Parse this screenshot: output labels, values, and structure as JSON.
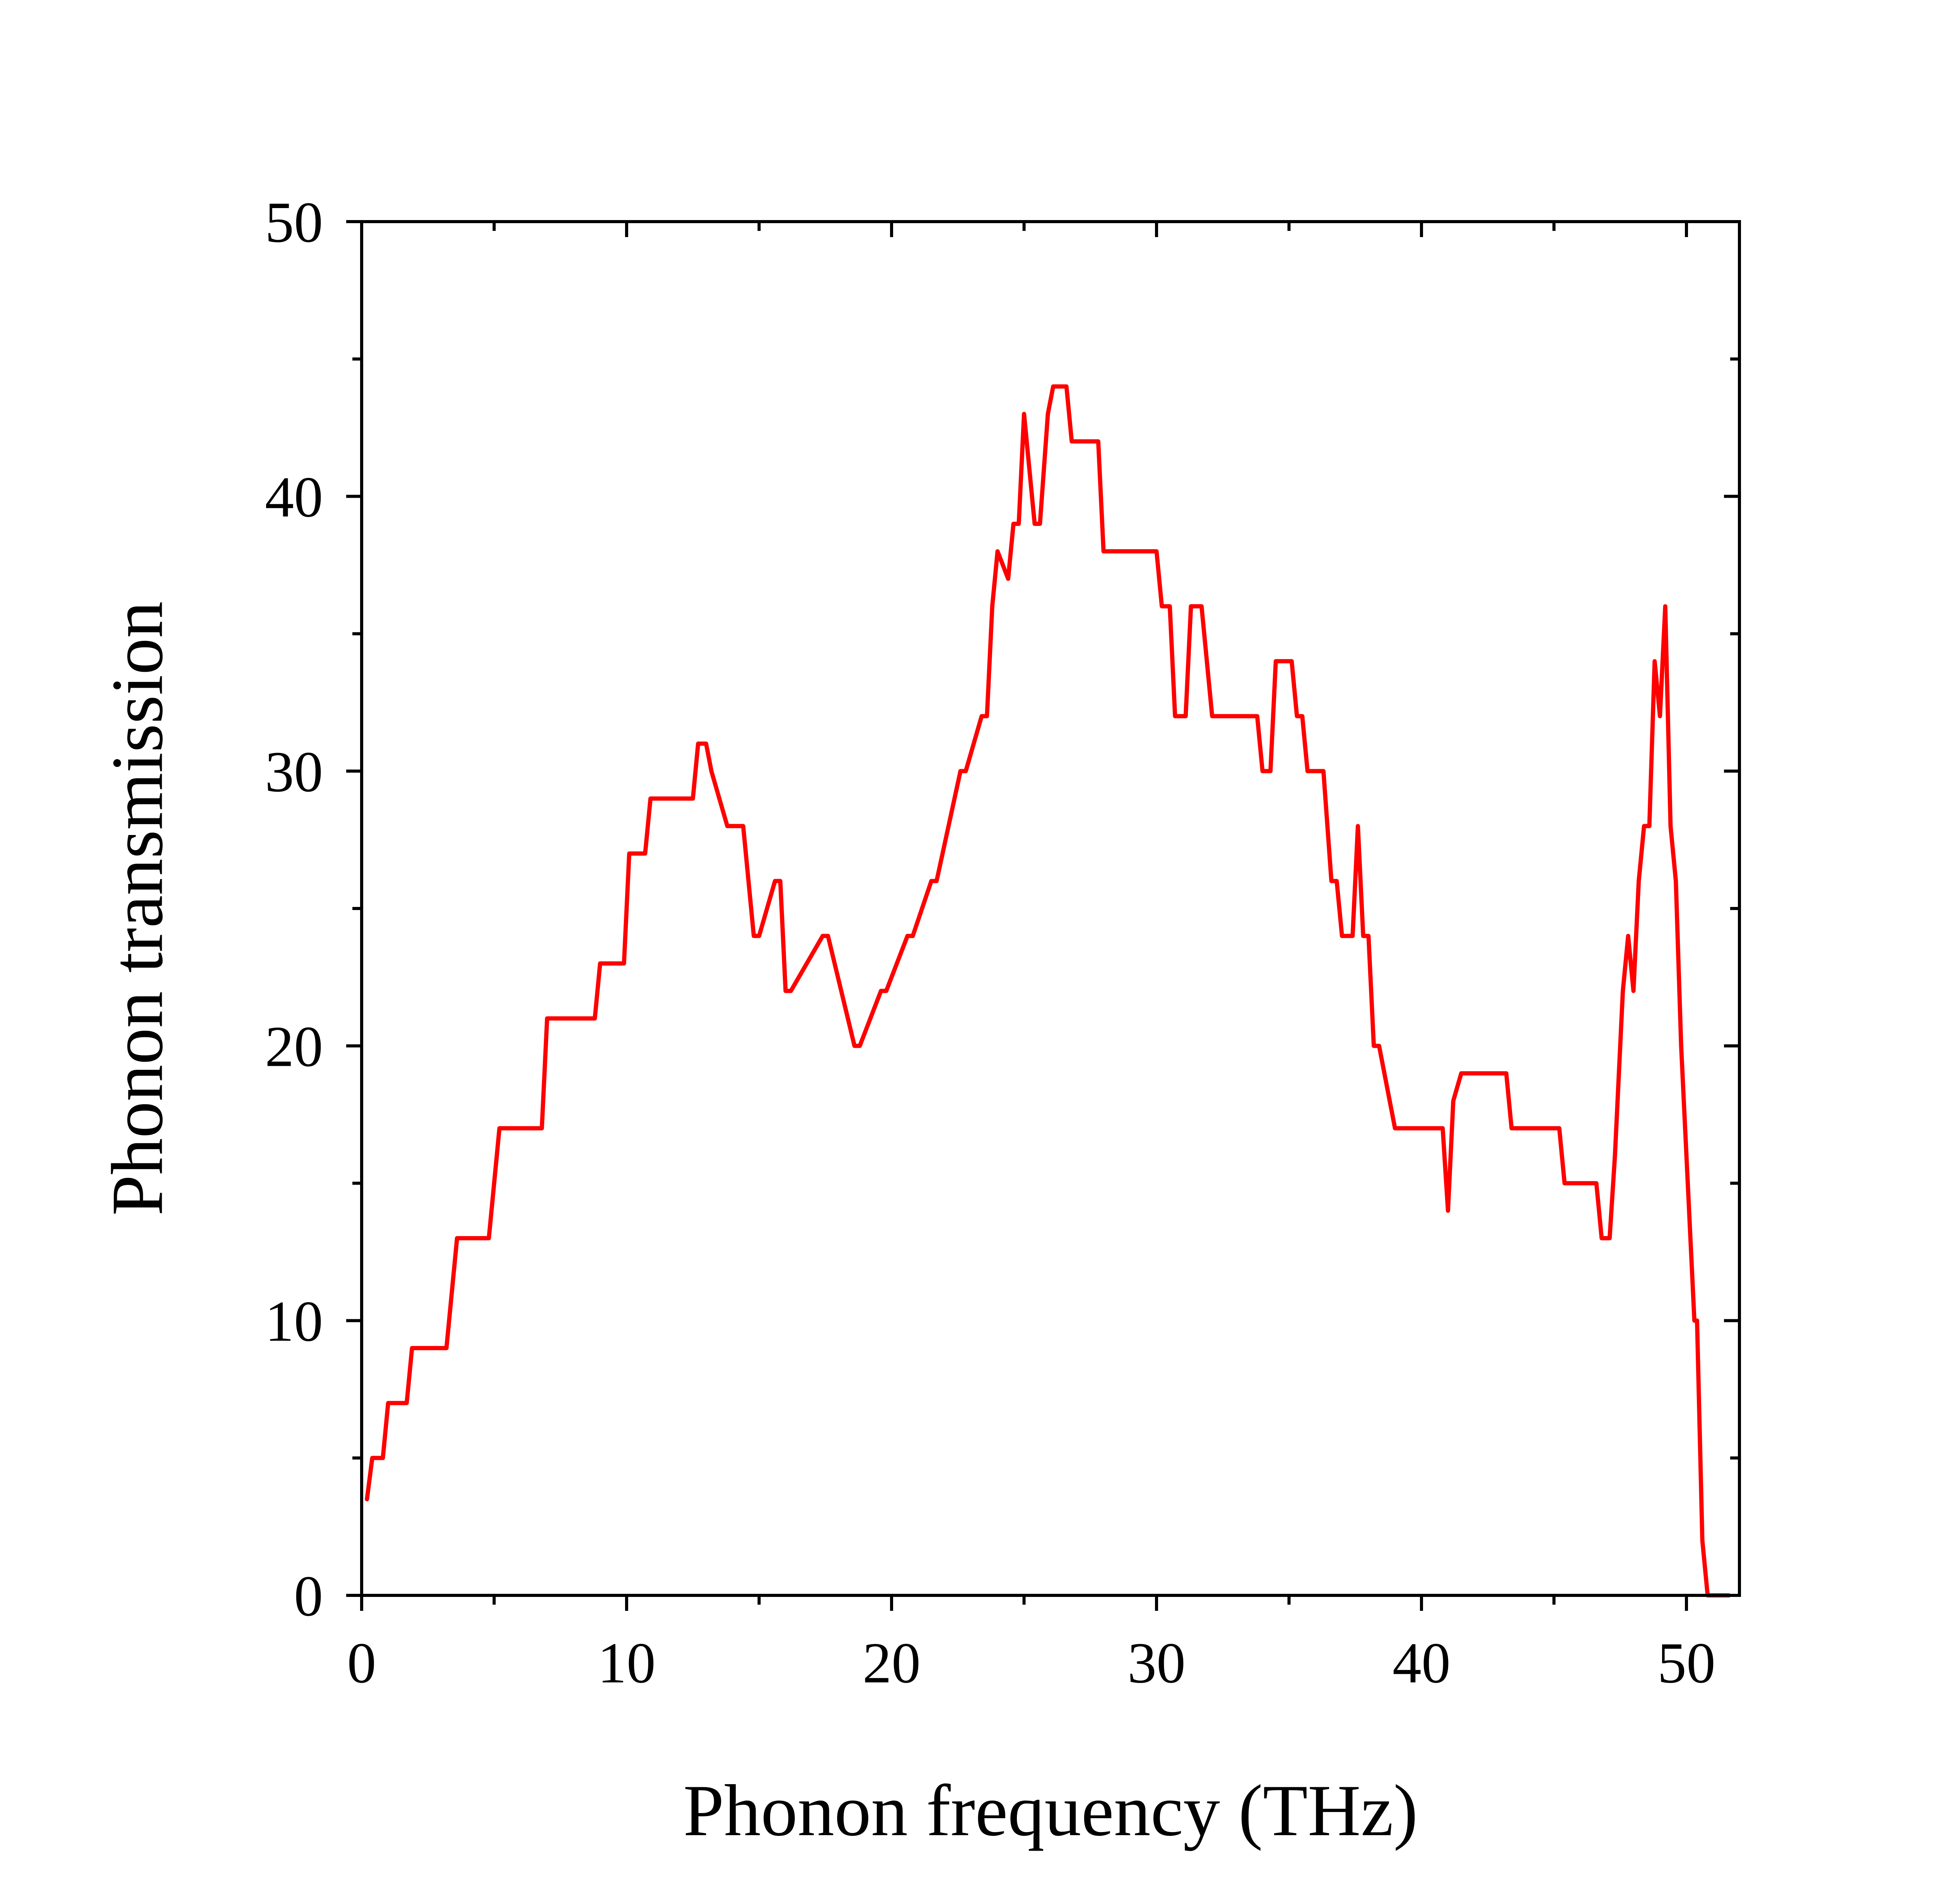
{
  "chart_data": {
    "type": "line",
    "xlabel": "Phonon frequency (THz)",
    "ylabel": "Phonon transmission",
    "xlim": [
      0,
      52
    ],
    "ylim": [
      0,
      50
    ],
    "x_ticks": [
      0,
      10,
      20,
      30,
      40,
      50
    ],
    "y_ticks": [
      0,
      10,
      20,
      30,
      40,
      50
    ],
    "x_minor_ticks": [
      5,
      15,
      25,
      35,
      45
    ],
    "y_minor_ticks": [
      5,
      15,
      25,
      35,
      45
    ],
    "grid": false,
    "legend": "none",
    "series_color": "#ff0000",
    "series": [
      {
        "x": [
          0.2,
          0.4,
          0.8,
          1.0,
          1.7,
          1.9,
          3.2,
          3.6,
          4.8,
          5.2,
          6.8,
          7.0,
          8.8,
          9.0,
          9.9,
          10.1,
          10.7,
          10.9,
          12.5,
          12.7,
          13.0,
          13.2,
          13.8,
          14.4,
          14.8,
          15.0,
          15.6,
          15.8,
          16.0,
          16.2,
          17.4,
          17.6,
          18.6,
          18.8,
          19.6,
          19.8,
          20.6,
          20.8,
          21.5,
          21.7,
          22.6,
          22.8,
          23.4,
          23.6,
          23.8,
          24.0,
          24.4,
          24.6,
          24.8,
          25.0,
          25.4,
          25.6,
          25.9,
          26.1,
          26.6,
          26.8,
          27.8,
          28.0,
          30.0,
          30.2,
          30.5,
          30.7,
          31.1,
          31.3,
          31.7,
          32.1,
          33.8,
          34.0,
          34.3,
          34.5,
          35.1,
          35.3,
          35.5,
          35.7,
          36.3,
          36.6,
          36.8,
          37.0,
          37.4,
          37.6,
          37.8,
          38.0,
          38.2,
          38.4,
          38.8,
          39.0,
          39.2,
          40.8,
          41.0,
          41.2,
          41.5,
          43.2,
          43.4,
          45.2,
          45.4,
          46.6,
          46.8,
          47.1,
          47.3,
          47.6,
          47.8,
          48.0,
          48.2,
          48.4,
          48.6,
          48.8,
          49.0,
          49.2,
          49.4,
          49.6,
          49.8,
          50.0,
          50.2,
          50.3,
          50.4,
          50.6,
          50.8,
          51.0,
          51.2,
          51.6
        ],
        "values": [
          3.5,
          5,
          5,
          7,
          7,
          9,
          9,
          13,
          13,
          17,
          17,
          21,
          21,
          23,
          23,
          27,
          27,
          29,
          29,
          31,
          31,
          30,
          28,
          28,
          24,
          24,
          26,
          26,
          22,
          22,
          24,
          24,
          20,
          20,
          22,
          22,
          24,
          24,
          26,
          26,
          30,
          30,
          32,
          32,
          36,
          38,
          37,
          39,
          39,
          43,
          39,
          39,
          43,
          44,
          44,
          42,
          42,
          38,
          38,
          36,
          36,
          32,
          32,
          36,
          36,
          32,
          32,
          30,
          30,
          34,
          34,
          32,
          32,
          30,
          30,
          26,
          26,
          24,
          24,
          28,
          24,
          24,
          20,
          20,
          18,
          17,
          17,
          17,
          14,
          18,
          19,
          19,
          17,
          17,
          15,
          15,
          13,
          13,
          16,
          22,
          24,
          22,
          26,
          28,
          28,
          34,
          32,
          36,
          28,
          26,
          20,
          16,
          12,
          10,
          10,
          2,
          0,
          0,
          0,
          0
        ],
        "name": ""
      }
    ]
  }
}
